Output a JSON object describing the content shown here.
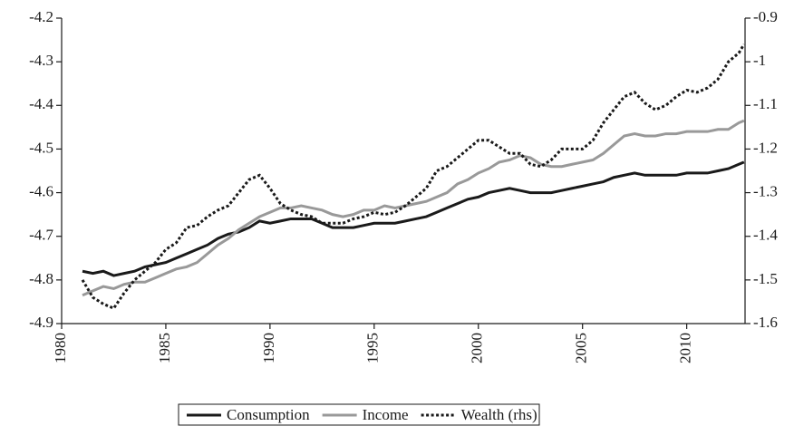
{
  "chart_data": {
    "type": "line",
    "x": [
      1981,
      1981.5,
      1982,
      1982.5,
      1983,
      1983.5,
      1984,
      1984.5,
      1985,
      1985.5,
      1986,
      1986.5,
      1987,
      1987.5,
      1988,
      1988.5,
      1989,
      1989.5,
      1990,
      1990.5,
      1991,
      1991.5,
      1992,
      1992.5,
      1993,
      1993.5,
      1994,
      1994.5,
      1995,
      1995.5,
      1996,
      1996.5,
      1997,
      1997.5,
      1998,
      1998.5,
      1999,
      1999.5,
      2000,
      2000.5,
      2001,
      2001.5,
      2002,
      2002.5,
      2003,
      2003.5,
      2004,
      2004.5,
      2005,
      2005.5,
      2006,
      2006.5,
      2007,
      2007.5,
      2008,
      2008.5,
      2009,
      2009.5,
      2010,
      2010.5,
      2011,
      2011.5,
      2012,
      2012.5,
      2012.75
    ],
    "series": [
      {
        "name": "Consumption",
        "color": "#1a1a1a",
        "dash": "solid",
        "values": [
          -4.78,
          -4.785,
          -4.78,
          -4.79,
          -4.785,
          -4.78,
          -4.77,
          -4.765,
          -4.76,
          -4.75,
          -4.74,
          -4.73,
          -4.72,
          -4.705,
          -4.695,
          -4.69,
          -4.68,
          -4.665,
          -4.67,
          -4.665,
          -4.66,
          -4.66,
          -4.66,
          -4.67,
          -4.68,
          -4.68,
          -4.68,
          -4.675,
          -4.67,
          -4.67,
          -4.67,
          -4.665,
          -4.66,
          -4.655,
          -4.645,
          -4.635,
          -4.625,
          -4.615,
          -4.61,
          -4.6,
          -4.595,
          -4.59,
          -4.595,
          -4.6,
          -4.6,
          -4.6,
          -4.595,
          -4.59,
          -4.585,
          -4.58,
          -4.575,
          -4.565,
          -4.56,
          -4.555,
          -4.56,
          -4.56,
          -4.56,
          -4.56,
          -4.555,
          -4.555,
          -4.555,
          -4.55,
          -4.545,
          -4.535,
          -4.53
        ]
      },
      {
        "name": "Income",
        "color": "#999999",
        "dash": "solid",
        "values": [
          -4.835,
          -4.825,
          -4.815,
          -4.82,
          -4.81,
          -4.805,
          -4.805,
          -4.795,
          -4.785,
          -4.775,
          -4.77,
          -4.76,
          -4.74,
          -4.72,
          -4.705,
          -4.685,
          -4.67,
          -4.655,
          -4.645,
          -4.635,
          -4.635,
          -4.63,
          -4.635,
          -4.64,
          -4.65,
          -4.655,
          -4.65,
          -4.64,
          -4.64,
          -4.63,
          -4.635,
          -4.63,
          -4.625,
          -4.62,
          -4.61,
          -4.6,
          -4.58,
          -4.57,
          -4.555,
          -4.545,
          -4.53,
          -4.525,
          -4.515,
          -4.52,
          -4.535,
          -4.54,
          -4.54,
          -4.535,
          -4.53,
          -4.525,
          -4.51,
          -4.49,
          -4.47,
          -4.465,
          -4.47,
          -4.47,
          -4.465,
          -4.465,
          -4.46,
          -4.46,
          -4.46,
          -4.455,
          -4.455,
          -4.44,
          -4.435
        ]
      },
      {
        "name": "Wealth (rhs)",
        "color": "#1a1a1a",
        "dash": "dotted",
        "axis": "y2",
        "values": [
          -1.5,
          -1.54,
          -1.555,
          -1.565,
          -1.53,
          -1.5,
          -1.48,
          -1.46,
          -1.43,
          -1.415,
          -1.38,
          -1.375,
          -1.355,
          -1.34,
          -1.33,
          -1.3,
          -1.27,
          -1.26,
          -1.29,
          -1.325,
          -1.34,
          -1.35,
          -1.355,
          -1.37,
          -1.37,
          -1.37,
          -1.36,
          -1.355,
          -1.345,
          -1.35,
          -1.345,
          -1.33,
          -1.31,
          -1.29,
          -1.25,
          -1.24,
          -1.22,
          -1.2,
          -1.18,
          -1.18,
          -1.195,
          -1.21,
          -1.21,
          -1.235,
          -1.24,
          -1.225,
          -1.2,
          -1.2,
          -1.2,
          -1.18,
          -1.14,
          -1.11,
          -1.08,
          -1.07,
          -1.095,
          -1.11,
          -1.1,
          -1.08,
          -1.065,
          -1.07,
          -1.06,
          -1.04,
          -1.0,
          -0.98,
          -0.96
        ]
      }
    ],
    "xlim": [
      1980,
      2012.8
    ],
    "xticks": [
      1980,
      1985,
      1990,
      1995,
      2000,
      2005,
      2010
    ],
    "ylim": [
      -4.9,
      -4.2
    ],
    "yticks": [
      -4.2,
      -4.3,
      -4.4,
      -4.5,
      -4.6,
      -4.7,
      -4.8,
      -4.9
    ],
    "y2lim": [
      -1.6,
      -0.9
    ],
    "y2ticks": [
      -0.9,
      -1.0,
      -1.1,
      -1.2,
      -1.3,
      -1.4,
      -1.5,
      -1.6
    ],
    "grid": false,
    "legend": "bottom"
  }
}
